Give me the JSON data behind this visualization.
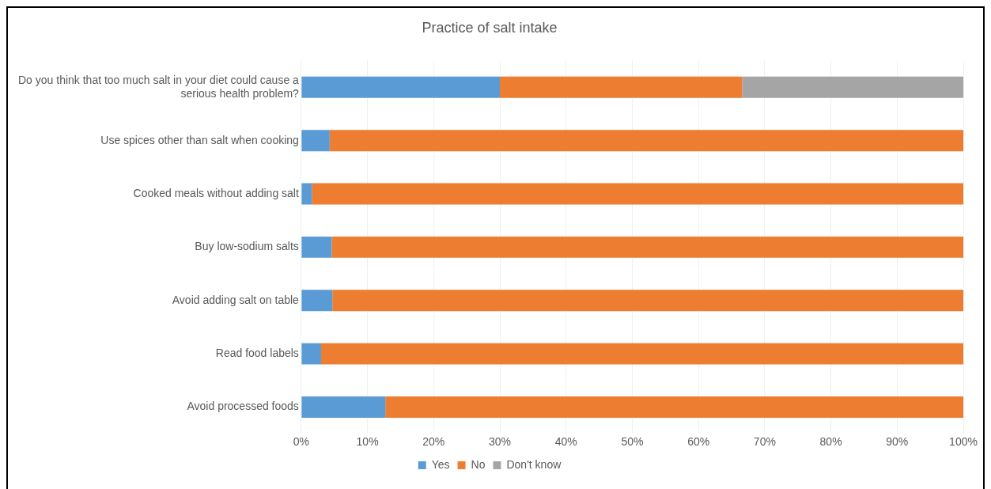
{
  "chart_data": {
    "type": "bar",
    "orientation": "horizontal",
    "stacked": true,
    "title": "Practice of salt intake",
    "categories": [
      "Do you think that too much salt in your diet could cause a serious health problem?",
      "Use spices other than salt when cooking",
      "Cooked meals without adding salt",
      "Buy low-sodium salts",
      "Avoid adding salt on table",
      "Read food labels",
      "Avoid processed foods"
    ],
    "series": [
      {
        "name": "Yes",
        "color": "#5b9bd5",
        "values": [
          30.0,
          4.3,
          1.6,
          4.6,
          4.7,
          3.0,
          12.7
        ]
      },
      {
        "name": "No",
        "color": "#ed7d31",
        "values": [
          36.6,
          95.7,
          98.4,
          95.4,
          95.3,
          97.0,
          87.3
        ]
      },
      {
        "name": "Don't know",
        "color": "#a5a5a5",
        "values": [
          33.4,
          0,
          0,
          0,
          0,
          0,
          0
        ]
      }
    ],
    "xlim": [
      0,
      100
    ],
    "xticks": [
      {
        "value": 0,
        "label": "0%"
      },
      {
        "value": 10,
        "label": "10%"
      },
      {
        "value": 20,
        "label": "20%"
      },
      {
        "value": 30,
        "label": "30%"
      },
      {
        "value": 40,
        "label": "40%"
      },
      {
        "value": 50,
        "label": "50%"
      },
      {
        "value": 60,
        "label": "60%"
      },
      {
        "value": 70,
        "label": "70%"
      },
      {
        "value": 80,
        "label": "80%"
      },
      {
        "value": 90,
        "label": "90%"
      },
      {
        "value": 100,
        "label": "100%"
      }
    ],
    "grid": "x",
    "legend": "bottom"
  }
}
